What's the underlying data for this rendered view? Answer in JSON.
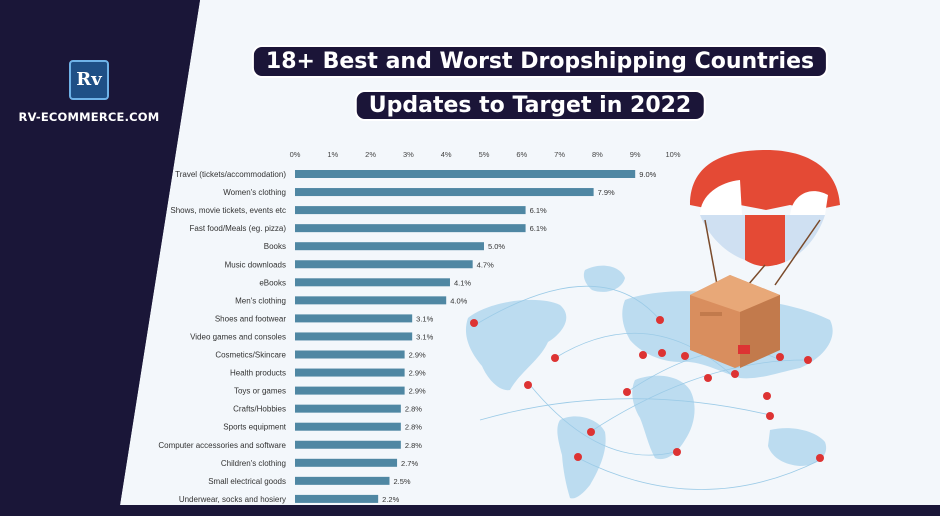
{
  "brand": {
    "logo_text": "Rv",
    "site": "RV-ECOMMERCE.COM"
  },
  "header": {
    "title_line1": "18+ Best and Worst Dropshipping Countries",
    "title_line2": "Updates to Target in 2022"
  },
  "colors": {
    "bar": "#4f87a3",
    "dark": "#1a1638",
    "light_bg": "#f4f8fb",
    "parachute_red": "#e44a35",
    "box": "#d98e5e",
    "pin": "#dd3333",
    "map": "#b8d9ee"
  },
  "chart_data": {
    "type": "bar",
    "orientation": "horizontal",
    "categories": [
      "Travel (tickets/accommodation)",
      "Women's clothing",
      "Shows, movie tickets, events etc",
      "Fast food/Meals (eg. pizza)",
      "Books",
      "Music downloads",
      "eBooks",
      "Men's clothing",
      "Shoes and footwear",
      "Video games and consoles",
      "Cosmetics/Skincare",
      "Health products",
      "Toys or games",
      "Crafts/Hobbies",
      "Sports equipment",
      "Computer accessories and software",
      "Children's clothing",
      "Small electrical goods",
      "Underwear, socks and hosiery"
    ],
    "values": [
      9.0,
      7.9,
      6.1,
      6.1,
      5.0,
      4.7,
      4.1,
      4.0,
      3.1,
      3.1,
      2.9,
      2.9,
      2.9,
      2.8,
      2.8,
      2.8,
      2.7,
      2.5,
      2.2
    ],
    "value_labels": [
      "9.0%",
      "7.9%",
      "6.1%",
      "6.1%",
      "5.0%",
      "4.7%",
      "4.1%",
      "4.0%",
      "3.1%",
      "3.1%",
      "2.9%",
      "2.9%",
      "2.9%",
      "2.8%",
      "2.8%",
      "2.8%",
      "2.7%",
      "2.5%",
      "2.2%"
    ],
    "xticks": [
      "0%",
      "1%",
      "2%",
      "3%",
      "4%",
      "5%",
      "6%",
      "7%",
      "8%",
      "9%",
      "10%"
    ],
    "xlim": [
      0,
      10
    ],
    "grid": false,
    "legend": "none"
  }
}
